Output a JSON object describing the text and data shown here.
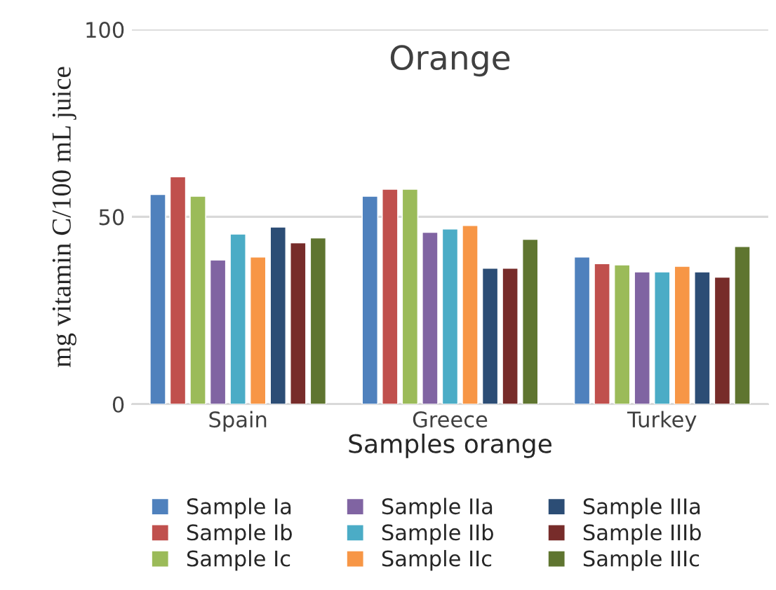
{
  "chart_data": {
    "type": "bar",
    "title": "Orange",
    "xlabel": "Samples orange",
    "ylabel": "mg vitamin C/100 mL juice",
    "categories": [
      "Spain",
      "Greece",
      "Turkey"
    ],
    "series": [
      {
        "name": "Sample Ia",
        "color": "#4f81bd",
        "values": [
          56.0,
          55.5,
          39.3
        ]
      },
      {
        "name": "Sample Ib",
        "color": "#c0504d",
        "values": [
          60.7,
          57.4,
          37.5
        ]
      },
      {
        "name": "Sample Ic",
        "color": "#9bbb59",
        "values": [
          55.5,
          57.4,
          37.2
        ]
      },
      {
        "name": "Sample IIa",
        "color": "#8064a2",
        "values": [
          38.5,
          45.9,
          35.3
        ]
      },
      {
        "name": "Sample IIb",
        "color": "#4bacc6",
        "values": [
          45.4,
          46.8,
          35.3
        ]
      },
      {
        "name": "Sample IIc",
        "color": "#f79646",
        "values": [
          39.3,
          47.7,
          36.8
        ]
      },
      {
        "name": "Sample IIIa",
        "color": "#2c4d75",
        "values": [
          47.3,
          36.3,
          35.3
        ]
      },
      {
        "name": "Sample IIIb",
        "color": "#772c2a",
        "values": [
          43.1,
          36.3,
          33.9
        ]
      },
      {
        "name": "Sample IIIc",
        "color": "#5f7530",
        "values": [
          44.4,
          44.0,
          42.1
        ]
      }
    ],
    "ylim": [
      0,
      100
    ],
    "yticks": [
      0,
      50,
      100
    ],
    "grid": "y",
    "legend": "bottom"
  }
}
